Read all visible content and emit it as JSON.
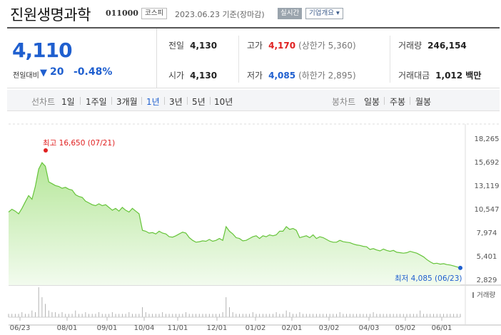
{
  "header": {
    "title": "진원생명과학",
    "code": "011000",
    "market": "코스피",
    "date": "2023.06.23 기준(장마감)",
    "live_label": "실시간",
    "corp_label": "기업개요 ▾"
  },
  "price": {
    "current": "4,110",
    "diff_label": "전일대비",
    "diff_arrow": "▼",
    "diff_value": "20",
    "diff_pct": "-0.48%",
    "color": "#1f5fcf"
  },
  "stats": {
    "prev_label": "전일",
    "prev": "4,130",
    "high_label": "고가",
    "high": "4,170",
    "high_sub": "(상한가 5,360)",
    "volume_label": "거래량",
    "volume": "246,154",
    "open_label": "시가",
    "open": "4,130",
    "low_label": "저가",
    "low": "4,085",
    "low_sub": "(하한가 2,895)",
    "amount_label": "거래대금",
    "amount": "1,012 백만"
  },
  "tabs": {
    "line_label": "선차트",
    "line": [
      "1일",
      "1주일",
      "3개월",
      "1년",
      "3년",
      "5년",
      "10년"
    ],
    "active": "1년",
    "candle_label": "봉차트",
    "candle": [
      "일봉",
      "주봉",
      "월봉"
    ]
  },
  "chart_data": {
    "type": "area",
    "y_ticks": [
      "18,265",
      "15,692",
      "13,119",
      "10,547",
      "7,974",
      "5,401",
      "2,829"
    ],
    "y_range": [
      2829,
      18265
    ],
    "x_ticks": [
      "06/23",
      "08/01",
      "09/01",
      "10/04",
      "11/01",
      "12/01",
      "01/02",
      "02/01",
      "03/02",
      "04/03",
      "05/02",
      "06/01"
    ],
    "max_label": "최고 16,650 (07/21)",
    "min_label": "최저 4,085 (06/23)",
    "volume_legend": "거래량",
    "line_color": "#66c43a",
    "fill_color": "#d6f1c5",
    "values": [
      10200,
      10500,
      10300,
      10000,
      10600,
      11300,
      12000,
      11600,
      13000,
      14900,
      15600,
      15200,
      13500,
      13300,
      13100,
      13000,
      12800,
      12900,
      12700,
      12600,
      12100,
      11900,
      11800,
      11400,
      11200,
      11000,
      10900,
      11100,
      10900,
      11000,
      10700,
      10400,
      10600,
      10300,
      10700,
      10400,
      10200,
      10600,
      10300,
      10000,
      8200,
      8100,
      7900,
      7950,
      7800,
      8100,
      7900,
      7800,
      7500,
      7450,
      7600,
      7800,
      8000,
      7900,
      7400,
      7100,
      6900,
      6950,
      7050,
      7000,
      7200,
      7000,
      7100,
      7300,
      7100,
      8600,
      8100,
      7800,
      7400,
      7300,
      7050,
      7100,
      7300,
      7500,
      7600,
      7300,
      7600,
      7500,
      7700,
      7600,
      7700,
      8100,
      8100,
      8600,
      8300,
      8400,
      8200,
      7400,
      7500,
      7600,
      7400,
      7700,
      7300,
      7500,
      7400,
      7200,
      7000,
      6900,
      6900,
      7100,
      6950,
      6900,
      6850,
      6700,
      6600,
      6550,
      6450,
      6400,
      6100,
      6200,
      6050,
      5950,
      6150,
      6000,
      5900,
      6000,
      5800,
      5750,
      5700,
      5750,
      5900,
      5800,
      5700,
      5500,
      5300,
      5000,
      4750,
      4550,
      4600,
      4500,
      4550,
      4450,
      4400,
      4300,
      4200,
      4085
    ],
    "volume": [
      2,
      2,
      2,
      2,
      3,
      2,
      2,
      4,
      3,
      18,
      12,
      8,
      4,
      3,
      3,
      2,
      3,
      2,
      2,
      2,
      4,
      2,
      2,
      3,
      2,
      2,
      2,
      3,
      2,
      2,
      2,
      3,
      2,
      2,
      2,
      2,
      3,
      2,
      2,
      2,
      6,
      3,
      2,
      2,
      2,
      2,
      3,
      2,
      2,
      2,
      2,
      2,
      2,
      3,
      2,
      2,
      2,
      2,
      2,
      2,
      2,
      2,
      2,
      2,
      3,
      12,
      6,
      3,
      2,
      2,
      2,
      2,
      2,
      3,
      2,
      2,
      2,
      2,
      2,
      2,
      3,
      2,
      2,
      4,
      3,
      2,
      2,
      3,
      2,
      2,
      2,
      2,
      2,
      2,
      2,
      2,
      2,
      2,
      2,
      3,
      2,
      2,
      2,
      2,
      2,
      2,
      2,
      2,
      2,
      3,
      2,
      2,
      2,
      2,
      2,
      2,
      2,
      2,
      2,
      2,
      2,
      2,
      2,
      4,
      2,
      2,
      2,
      2,
      2,
      2,
      2,
      2,
      2,
      2,
      2,
      2
    ]
  }
}
